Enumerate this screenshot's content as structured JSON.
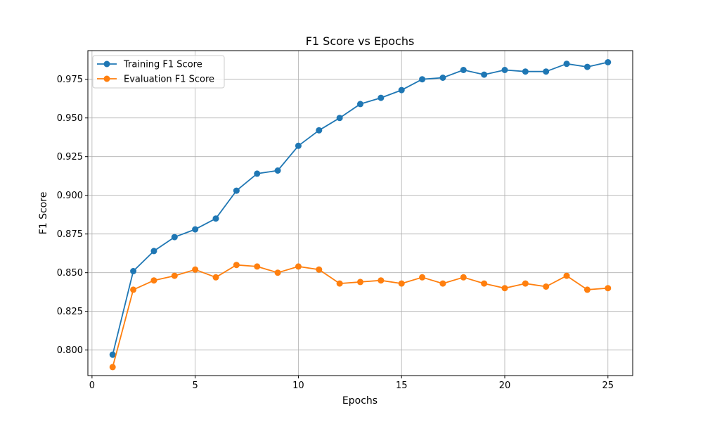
{
  "chart_data": {
    "type": "line",
    "title": "F1 Score vs Epochs",
    "xlabel": "Epochs",
    "ylabel": "F1 Score",
    "xlim": [
      -0.2,
      26.2
    ],
    "ylim": [
      0.7835,
      0.9935
    ],
    "xticks": [
      "0",
      "5",
      "10",
      "15",
      "20",
      "25"
    ],
    "yticks": [
      "0.800",
      "0.825",
      "0.850",
      "0.875",
      "0.900",
      "0.925",
      "0.950",
      "0.975"
    ],
    "grid": true,
    "legend_position": "upper-left",
    "x": [
      1,
      2,
      3,
      4,
      5,
      6,
      7,
      8,
      9,
      10,
      11,
      12,
      13,
      14,
      15,
      16,
      17,
      18,
      19,
      20,
      21,
      22,
      23,
      24,
      25
    ],
    "series": [
      {
        "name": "Training F1 Score",
        "color": "#1f77b4",
        "values": [
          0.797,
          0.851,
          0.864,
          0.873,
          0.878,
          0.885,
          0.903,
          0.914,
          0.916,
          0.932,
          0.942,
          0.95,
          0.959,
          0.963,
          0.968,
          0.975,
          0.976,
          0.981,
          0.978,
          0.981,
          0.98,
          0.98,
          0.985,
          0.983,
          0.986
        ]
      },
      {
        "name": "Evaluation F1 Score",
        "color": "#ff7f0e",
        "values": [
          0.789,
          0.839,
          0.845,
          0.848,
          0.852,
          0.847,
          0.855,
          0.854,
          0.85,
          0.854,
          0.852,
          0.843,
          0.844,
          0.845,
          0.843,
          0.847,
          0.843,
          0.847,
          0.843,
          0.84,
          0.843,
          0.841,
          0.848,
          0.839,
          0.84
        ]
      }
    ]
  }
}
